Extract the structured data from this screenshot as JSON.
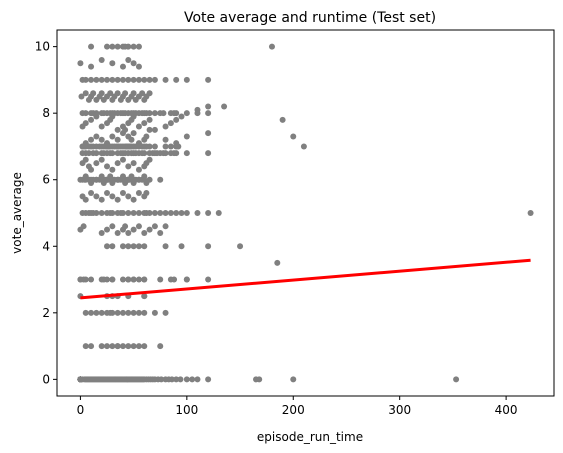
{
  "chart_data": {
    "type": "scatter",
    "title": "Vote average and runtime (Test set)",
    "xlabel": "episode_run_time",
    "ylabel": "vote_average",
    "xlim": [
      -22,
      445
    ],
    "ylim": [
      -0.5,
      10.5
    ],
    "xticks": [
      "0",
      "100",
      "200",
      "300",
      "400"
    ],
    "yticks": [
      "0",
      "2",
      "4",
      "6",
      "8",
      "10"
    ],
    "grid": false,
    "point_color": "#808080",
    "line_color": "#ff0000",
    "series": [
      {
        "type": "scatter",
        "x": [
          0,
          0,
          0,
          0,
          0,
          0,
          0,
          0,
          0,
          0,
          0,
          0,
          0,
          0,
          0,
          0,
          0,
          0,
          0,
          0,
          0,
          0,
          0,
          0,
          0,
          0,
          0,
          0,
          2,
          4,
          5,
          6,
          7,
          8,
          9,
          10,
          11,
          12,
          13,
          14,
          15,
          16,
          17,
          18,
          19,
          20,
          21,
          22,
          23,
          24,
          25,
          26,
          27,
          28,
          29,
          30,
          31,
          32,
          33,
          34,
          35,
          36,
          37,
          38,
          39,
          40,
          41,
          42,
          43,
          44,
          45,
          46,
          47,
          48,
          49,
          50,
          51,
          52,
          53,
          54,
          55,
          56,
          57,
          58,
          59,
          60,
          62,
          64,
          66,
          68,
          70,
          73,
          76,
          80,
          83,
          86,
          90,
          94,
          100,
          105,
          110,
          120,
          165,
          168,
          200,
          353,
          5,
          10,
          20,
          25,
          30,
          35,
          40,
          45,
          50,
          55,
          60,
          75,
          5,
          10,
          15,
          20,
          25,
          28,
          30,
          35,
          40,
          45,
          50,
          55,
          60,
          70,
          80,
          0,
          22,
          30,
          45,
          50,
          60,
          75,
          85,
          88,
          100,
          120,
          25,
          30,
          40,
          45,
          50,
          55,
          60,
          80,
          95,
          120,
          150,
          2,
          4,
          5,
          8,
          10,
          12,
          15,
          18,
          20,
          22,
          24,
          25,
          26,
          27,
          28,
          30,
          32,
          34,
          35,
          36,
          38,
          40,
          42,
          43,
          44,
          45,
          46,
          47,
          48,
          50,
          52,
          55,
          58,
          60,
          62,
          65,
          80,
          85,
          90,
          92,
          2,
          4,
          5,
          8,
          10,
          12,
          15,
          18,
          20,
          22,
          24,
          25,
          26,
          28,
          30,
          32,
          35,
          36,
          38,
          40,
          42,
          44,
          45,
          46,
          48,
          50,
          52,
          55,
          58,
          60,
          65,
          2,
          5,
          10,
          12,
          15,
          20,
          22,
          25,
          28,
          30,
          32,
          35,
          38,
          40,
          42,
          45,
          48,
          50,
          52,
          55,
          58,
          60,
          62,
          65,
          70,
          75,
          78,
          85,
          88,
          90,
          100,
          110,
          120,
          2,
          5,
          8,
          12,
          15,
          20,
          22,
          25,
          28,
          30,
          35,
          38,
          40,
          42,
          45,
          48,
          50,
          52,
          55,
          58,
          60,
          65,
          68,
          70,
          72,
          75,
          78,
          80,
          85,
          88,
          90,
          100,
          120,
          2,
          5,
          10,
          15,
          20,
          25,
          30,
          35,
          40,
          42,
          45,
          48,
          50,
          55,
          60,
          62,
          65,
          70,
          80,
          90,
          100,
          120,
          210,
          2,
          5,
          8,
          10,
          12,
          15,
          20,
          25,
          28,
          30,
          35,
          38,
          40,
          45,
          50,
          55,
          60,
          62,
          65,
          70,
          75,
          80,
          85,
          90,
          95,
          100,
          110,
          120,
          130,
          200,
          2,
          5,
          10,
          15,
          20,
          25,
          30,
          35,
          40,
          45,
          50,
          55,
          60,
          65,
          70,
          80,
          90,
          100,
          120,
          190,
          2,
          5,
          10,
          15,
          20,
          25,
          28,
          30,
          35,
          40,
          45,
          48,
          50,
          55,
          60,
          65,
          70,
          80,
          85,
          90,
          95,
          110,
          120,
          135,
          2,
          5,
          8,
          10,
          15,
          20,
          25,
          30,
          35,
          40,
          45,
          50,
          55,
          60,
          62,
          65,
          2,
          5,
          10,
          15,
          20,
          25,
          30,
          35,
          40,
          45,
          50,
          55,
          60,
          62,
          10,
          25,
          30,
          35,
          40,
          42,
          45,
          50,
          55,
          1,
          5,
          8,
          10,
          12,
          15,
          18,
          20,
          22,
          25,
          28,
          30,
          32,
          35,
          38,
          40,
          42,
          45,
          48,
          50,
          52,
          55,
          58,
          60,
          62,
          65,
          0,
          3,
          20,
          25,
          30,
          35,
          40,
          42,
          45,
          50,
          55,
          60,
          65,
          70,
          75,
          80,
          180,
          0,
          10,
          20,
          30,
          40,
          45,
          50,
          55,
          0,
          5,
          10,
          15,
          20,
          22,
          25,
          28,
          30,
          35,
          40,
          42,
          45,
          48,
          50,
          55,
          60,
          62,
          75,
          0,
          3,
          5,
          10,
          20,
          25,
          30,
          40,
          45,
          50,
          55,
          60,
          0,
          25,
          30,
          35,
          45,
          60,
          423,
          185,
          100,
          60,
          35
        ],
        "y": [
          0,
          0,
          0,
          0,
          0,
          0,
          0,
          0,
          0,
          0,
          0,
          0,
          0,
          0,
          0,
          0,
          0,
          0,
          0,
          0,
          0,
          0,
          0,
          0,
          0,
          0,
          0,
          0,
          0,
          0,
          0,
          0,
          0,
          0,
          0,
          0,
          0,
          0,
          0,
          0,
          0,
          0,
          0,
          0,
          0,
          0,
          0,
          0,
          0,
          0,
          0,
          0,
          0,
          0,
          0,
          0,
          0,
          0,
          0,
          0,
          0,
          0,
          0,
          0,
          0,
          0,
          0,
          0,
          0,
          0,
          0,
          0,
          0,
          0,
          0,
          0,
          0,
          0,
          0,
          0,
          0,
          0,
          0,
          0,
          0,
          0,
          0,
          0,
          0,
          0,
          0,
          0,
          0,
          0,
          0,
          0,
          0,
          0,
          0,
          0,
          0,
          0,
          0,
          0,
          0,
          0,
          1,
          1,
          1,
          1,
          1,
          1,
          1,
          1,
          1,
          1,
          1,
          1,
          2,
          2,
          2,
          2,
          2,
          2,
          2,
          2,
          2,
          2,
          2,
          2,
          2,
          2,
          2,
          3,
          3,
          3,
          3,
          3,
          3,
          3,
          3,
          3,
          3,
          3,
          4,
          4,
          4,
          4,
          4,
          4,
          4,
          4,
          4,
          4,
          4,
          7,
          7,
          7,
          7,
          7,
          7,
          7,
          7,
          7,
          7,
          7,
          7,
          7,
          7,
          7,
          7,
          7,
          7,
          7,
          7,
          7,
          7,
          7,
          7,
          7,
          7,
          7,
          7,
          7,
          7,
          7,
          7,
          7,
          7,
          7,
          7,
          7,
          7,
          7,
          7,
          6,
          6,
          6,
          6,
          6,
          6,
          6,
          6,
          6,
          6,
          6,
          6,
          6,
          6,
          6,
          6,
          6,
          6,
          6,
          6,
          6,
          6,
          6,
          6,
          6,
          6,
          6,
          6,
          6,
          6,
          6,
          8,
          8,
          8,
          8,
          8,
          8,
          8,
          8,
          8,
          8,
          8,
          8,
          8,
          8,
          8,
          8,
          8,
          8,
          8,
          8,
          8,
          8,
          8,
          8,
          8,
          8,
          8,
          8,
          8,
          8,
          8,
          8,
          8,
          6.8,
          6.8,
          6.8,
          6.8,
          6.8,
          6.8,
          6.8,
          6.8,
          6.8,
          6.8,
          6.8,
          6.8,
          6.8,
          6.8,
          6.8,
          6.8,
          6.8,
          6.8,
          6.8,
          6.8,
          6.8,
          6.8,
          6.8,
          6.8,
          6.8,
          6.8,
          6.8,
          6.8,
          6.8,
          6.8,
          6.8,
          6.8,
          6.8,
          7,
          7.1,
          7.2,
          7.3,
          7.2,
          7.1,
          7.3,
          7.2,
          7.4,
          7.5,
          7.3,
          7.2,
          7.4,
          7.1,
          7.2,
          7.3,
          7.5,
          7.0,
          7.2,
          7.1,
          7.3,
          7.4,
          7.0,
          5,
          5,
          5,
          5,
          5,
          5,
          5,
          5,
          5,
          5,
          5,
          5,
          5,
          5,
          5,
          5,
          5,
          5,
          5,
          5,
          5,
          5,
          5,
          5,
          5,
          5,
          5,
          5,
          5,
          7.3,
          9,
          9,
          9,
          9,
          9,
          9,
          9,
          9,
          9,
          9,
          9,
          9,
          9,
          9,
          9,
          9,
          9,
          9,
          9,
          7.8,
          7.6,
          7.7,
          7.8,
          7.9,
          7.6,
          7.7,
          7.8,
          7.9,
          7.5,
          7.6,
          7.7,
          7.8,
          7.9,
          7.6,
          7.7,
          7.8,
          7.5,
          7.6,
          7.7,
          7.8,
          7.9,
          8.1,
          8.2,
          8.2,
          6.5,
          6.6,
          6.4,
          6.3,
          6.5,
          6.6,
          6.4,
          6.3,
          6.5,
          6.6,
          6.4,
          6.5,
          6.3,
          6.4,
          6.5,
          6.6,
          5.5,
          5.4,
          5.6,
          5.5,
          5.4,
          5.6,
          5.5,
          5.4,
          5.6,
          5.5,
          5.4,
          5.6,
          5.5,
          5.6,
          10,
          10,
          10,
          10,
          10,
          10,
          10,
          10,
          10,
          8.5,
          8.6,
          8.4,
          8.5,
          8.6,
          8.4,
          8.5,
          8.6,
          8.4,
          8.5,
          8.6,
          8.4,
          8.5,
          8.6,
          8.4,
          8.5,
          8.6,
          8.4,
          8.5,
          8.6,
          8.4,
          8.5,
          8.6,
          8.4,
          8.5,
          8.6,
          4.5,
          4.6,
          4.4,
          4.5,
          4.6,
          4.4,
          4.5,
          4.6,
          4.4,
          4.5,
          4.6,
          4.4,
          4.5,
          4.6,
          4.4,
          4.6,
          10,
          9.5,
          9.4,
          9.6,
          9.5,
          9.4,
          9.6,
          9.5,
          9.4,
          6,
          6.1,
          5.9,
          6.0,
          6.1,
          5.9,
          6.0,
          6.1,
          5.9,
          6.0,
          6.1,
          5.9,
          6.0,
          6.1,
          5.9,
          6.0,
          6.1,
          5.9,
          6.0,
          3,
          3,
          3,
          3,
          3,
          3,
          3,
          3,
          3,
          3,
          3,
          3,
          2.5,
          2.5,
          2.5,
          2.5,
          2.5,
          2.5,
          5,
          3.5,
          3,
          2.5,
          1
        ]
      },
      {
        "type": "line",
        "x": [
          0,
          423
        ],
        "y": [
          2.45,
          3.58
        ]
      }
    ]
  }
}
